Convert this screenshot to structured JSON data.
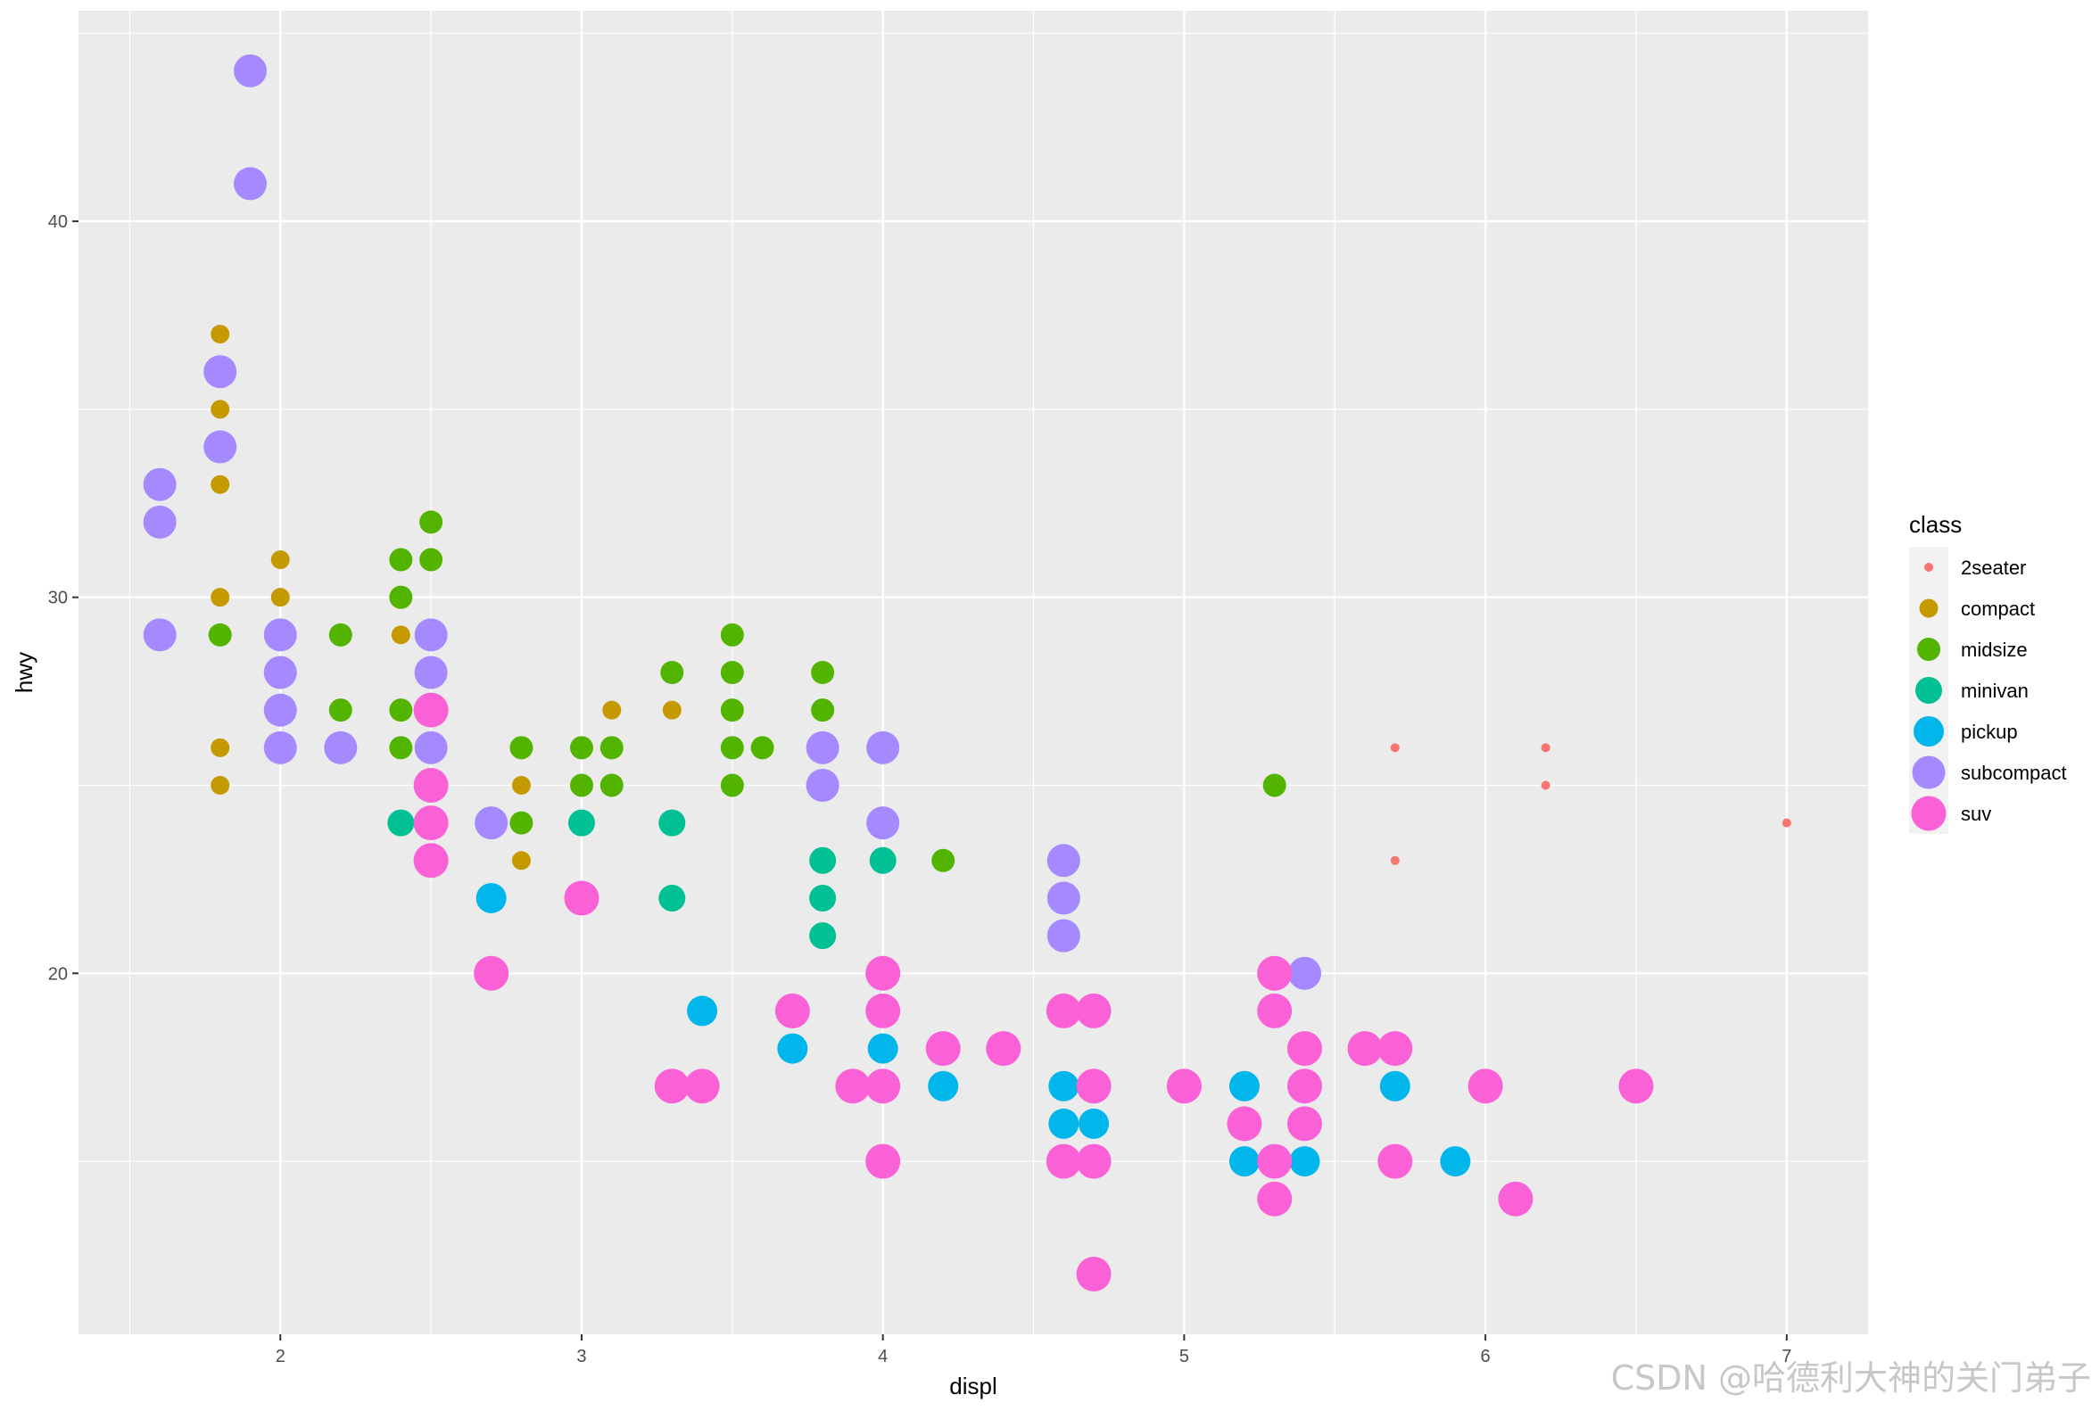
{
  "chart_data": {
    "type": "scatter",
    "title": "",
    "xlabel": "displ",
    "ylabel": "hwy",
    "xlim": [
      1.33,
      7.27
    ],
    "ylim": [
      10.4,
      45.6
    ],
    "x_ticks": [
      2,
      3,
      4,
      5,
      6,
      7
    ],
    "y_ticks": [
      20,
      30,
      40
    ],
    "grid": true,
    "legend": {
      "title": "class",
      "position": "right"
    },
    "series": [
      {
        "name": "2seater",
        "color": "#F8766D",
        "size": "2seater",
        "points": [
          [
            5.7,
            26
          ],
          [
            5.7,
            23
          ],
          [
            6.2,
            26
          ],
          [
            6.2,
            25
          ],
          [
            7.0,
            24
          ]
        ]
      },
      {
        "name": "compact",
        "color": "#C49A00",
        "size": "compact",
        "points": [
          [
            1.8,
            37
          ],
          [
            1.8,
            35
          ],
          [
            1.8,
            33
          ],
          [
            1.8,
            30
          ],
          [
            1.8,
            26
          ],
          [
            1.8,
            25
          ],
          [
            2.0,
            31
          ],
          [
            2.0,
            30
          ],
          [
            2.0,
            29
          ],
          [
            2.0,
            28
          ],
          [
            2.2,
            29
          ],
          [
            2.2,
            27
          ],
          [
            2.4,
            31
          ],
          [
            2.4,
            29
          ],
          [
            2.4,
            27
          ],
          [
            2.5,
            27
          ],
          [
            2.5,
            25
          ],
          [
            2.8,
            25
          ],
          [
            2.8,
            24
          ],
          [
            2.8,
            23
          ],
          [
            3.0,
            26
          ],
          [
            3.1,
            27
          ],
          [
            3.3,
            27
          ]
        ]
      },
      {
        "name": "midsize",
        "color": "#53B400",
        "size": "midsize",
        "points": [
          [
            1.8,
            29
          ],
          [
            2.0,
            29
          ],
          [
            2.0,
            28
          ],
          [
            2.2,
            29
          ],
          [
            2.2,
            27
          ],
          [
            2.4,
            31
          ],
          [
            2.4,
            30
          ],
          [
            2.4,
            27
          ],
          [
            2.4,
            26
          ],
          [
            2.5,
            32
          ],
          [
            2.5,
            31
          ],
          [
            2.5,
            26
          ],
          [
            2.8,
            26
          ],
          [
            2.8,
            24
          ],
          [
            3.0,
            26
          ],
          [
            3.0,
            25
          ],
          [
            3.1,
            26
          ],
          [
            3.1,
            25
          ],
          [
            3.3,
            28
          ],
          [
            3.5,
            29
          ],
          [
            3.5,
            28
          ],
          [
            3.5,
            27
          ],
          [
            3.5,
            26
          ],
          [
            3.5,
            25
          ],
          [
            3.6,
            26
          ],
          [
            3.8,
            28
          ],
          [
            3.8,
            27
          ],
          [
            3.8,
            26
          ],
          [
            4.2,
            23
          ],
          [
            5.3,
            25
          ]
        ]
      },
      {
        "name": "minivan",
        "color": "#00C094",
        "size": "minivan",
        "points": [
          [
            2.4,
            24
          ],
          [
            3.0,
            24
          ],
          [
            3.3,
            24
          ],
          [
            3.3,
            22
          ],
          [
            3.8,
            23
          ],
          [
            3.8,
            22
          ],
          [
            3.8,
            21
          ],
          [
            4.0,
            23
          ]
        ]
      },
      {
        "name": "pickup",
        "color": "#00B6EB",
        "size": "pickup",
        "points": [
          [
            2.7,
            22
          ],
          [
            2.7,
            20
          ],
          [
            3.4,
            19
          ],
          [
            3.4,
            17
          ],
          [
            3.7,
            18
          ],
          [
            4.0,
            20
          ],
          [
            4.0,
            18
          ],
          [
            4.2,
            17
          ],
          [
            4.6,
            17
          ],
          [
            4.6,
            16
          ],
          [
            4.7,
            17
          ],
          [
            4.7,
            16
          ],
          [
            5.2,
            17
          ],
          [
            5.2,
            16
          ],
          [
            5.2,
            15
          ],
          [
            5.4,
            15
          ],
          [
            5.7,
            17
          ],
          [
            5.9,
            15
          ]
        ]
      },
      {
        "name": "subcompact",
        "color": "#A58AFF",
        "size": "subcompact",
        "points": [
          [
            1.6,
            33
          ],
          [
            1.6,
            32
          ],
          [
            1.6,
            29
          ],
          [
            1.8,
            36
          ],
          [
            1.8,
            34
          ],
          [
            1.9,
            44
          ],
          [
            1.9,
            41
          ],
          [
            2.0,
            29
          ],
          [
            2.0,
            28
          ],
          [
            2.0,
            27
          ],
          [
            2.0,
            26
          ],
          [
            2.2,
            26
          ],
          [
            2.5,
            29
          ],
          [
            2.5,
            28
          ],
          [
            2.5,
            26
          ],
          [
            2.7,
            24
          ],
          [
            3.8,
            26
          ],
          [
            3.8,
            25
          ],
          [
            4.0,
            26
          ],
          [
            4.0,
            24
          ],
          [
            4.6,
            23
          ],
          [
            4.6,
            22
          ],
          [
            4.6,
            21
          ],
          [
            5.4,
            20
          ]
        ]
      },
      {
        "name": "suv",
        "color": "#FB61D7",
        "size": "suv",
        "points": [
          [
            2.5,
            27
          ],
          [
            2.5,
            25
          ],
          [
            2.5,
            24
          ],
          [
            2.5,
            23
          ],
          [
            2.7,
            20
          ],
          [
            3.0,
            22
          ],
          [
            3.3,
            17
          ],
          [
            3.4,
            17
          ],
          [
            3.7,
            19
          ],
          [
            3.9,
            17
          ],
          [
            4.0,
            20
          ],
          [
            4.0,
            19
          ],
          [
            4.0,
            17
          ],
          [
            4.0,
            15
          ],
          [
            4.2,
            18
          ],
          [
            4.4,
            18
          ],
          [
            4.6,
            19
          ],
          [
            4.6,
            15
          ],
          [
            4.7,
            19
          ],
          [
            4.7,
            17
          ],
          [
            4.7,
            15
          ],
          [
            4.7,
            12
          ],
          [
            5.0,
            17
          ],
          [
            5.2,
            16
          ],
          [
            5.3,
            20
          ],
          [
            5.3,
            19
          ],
          [
            5.3,
            15
          ],
          [
            5.3,
            14
          ],
          [
            5.4,
            18
          ],
          [
            5.4,
            17
          ],
          [
            5.4,
            16
          ],
          [
            5.6,
            18
          ],
          [
            5.7,
            18
          ],
          [
            5.7,
            15
          ],
          [
            6.0,
            17
          ],
          [
            6.1,
            14
          ],
          [
            6.5,
            17
          ]
        ]
      }
    ]
  },
  "watermark": "CSDN @哈德利大神的关门弟子"
}
